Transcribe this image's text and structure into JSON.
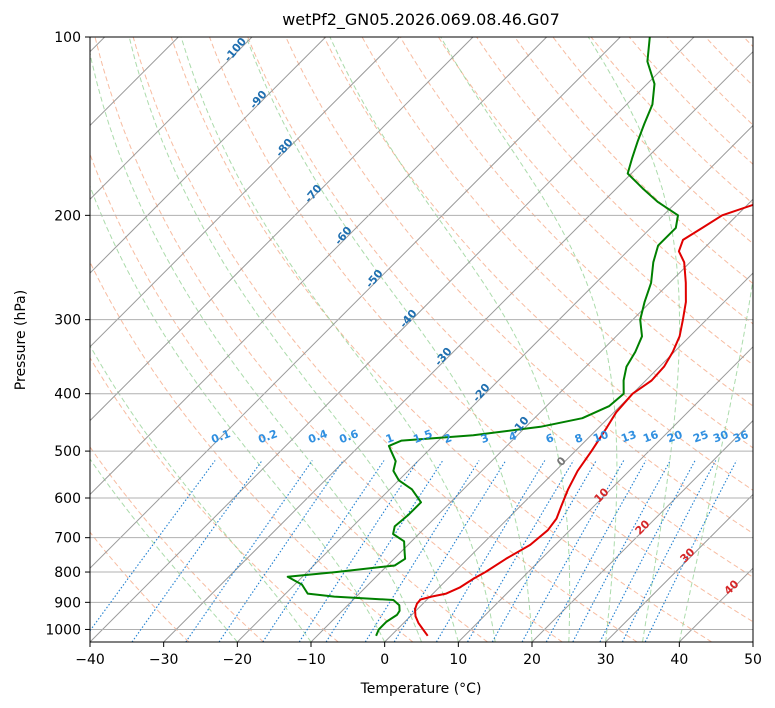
{
  "chart_data": {
    "type": "line",
    "title": "wetPf2_GN05.2026.069.08.46.G07",
    "xlabel": "Temperature (°C)",
    "ylabel": "Pressure (hPa)",
    "xlim": [
      -40,
      50
    ],
    "ylim": [
      1050,
      100
    ],
    "x_ticks": [
      "−40",
      "−30",
      "−20",
      "−10",
      "0",
      "10",
      "20",
      "30",
      "40",
      "50"
    ],
    "y_ticks": [
      "100",
      "200",
      "300",
      "400",
      "500",
      "600",
      "700",
      "800",
      "900",
      "1000"
    ],
    "series": [
      {
        "name": "Temperature",
        "color": "#e00000",
        "points": [
          {
            "p": 1025,
            "t": 5.0
          },
          {
            "p": 1000,
            "t": 3.5
          },
          {
            "p": 975,
            "t": 2.0
          },
          {
            "p": 950,
            "t": 0.7
          },
          {
            "p": 925,
            "t": -0.3
          },
          {
            "p": 905,
            "t": -0.8
          },
          {
            "p": 890,
            "t": -0.9
          },
          {
            "p": 880,
            "t": 0.2
          },
          {
            "p": 870,
            "t": 1.8
          },
          {
            "p": 850,
            "t": 2.8
          },
          {
            "p": 820,
            "t": 3.5
          },
          {
            "p": 800,
            "t": 4.2
          },
          {
            "p": 760,
            "t": 5.2
          },
          {
            "p": 720,
            "t": 6.6
          },
          {
            "p": 680,
            "t": 7.0
          },
          {
            "p": 650,
            "t": 6.6
          },
          {
            "p": 620,
            "t": 5.6
          },
          {
            "p": 580,
            "t": 4.2
          },
          {
            "p": 540,
            "t": 3.0
          },
          {
            "p": 500,
            "t": 2.2
          },
          {
            "p": 460,
            "t": 1.2
          },
          {
            "p": 430,
            "t": 0.3
          },
          {
            "p": 400,
            "t": 0.0
          },
          {
            "p": 380,
            "t": 0.8
          },
          {
            "p": 360,
            "t": 0.6
          },
          {
            "p": 340,
            "t": -0.2
          },
          {
            "p": 320,
            "t": -1.4
          },
          {
            "p": 300,
            "t": -3.2
          },
          {
            "p": 280,
            "t": -5.2
          },
          {
            "p": 260,
            "t": -7.8
          },
          {
            "p": 240,
            "t": -10.8
          },
          {
            "p": 230,
            "t": -13.0
          },
          {
            "p": 220,
            "t": -14.0
          },
          {
            "p": 210,
            "t": -13.0
          },
          {
            "p": 200,
            "t": -12.0
          },
          {
            "p": 190,
            "t": -8.5
          },
          {
            "p": 180,
            "t": -6.0
          },
          {
            "p": 170,
            "t": -5.5
          },
          {
            "p": 160,
            "t": -5.0
          },
          {
            "p": 150,
            "t": -4.0
          },
          {
            "p": 140,
            "t": -3.5
          },
          {
            "p": 130,
            "t": -3.2
          },
          {
            "p": 120,
            "t": -3.5
          },
          {
            "p": 110,
            "t": -4.5
          },
          {
            "p": 100,
            "t": -6.0
          }
        ]
      },
      {
        "name": "Dewpoint",
        "color": "#008000",
        "points": [
          {
            "p": 1025,
            "t": -2.0
          },
          {
            "p": 1000,
            "t": -2.5
          },
          {
            "p": 970,
            "t": -2.5
          },
          {
            "p": 945,
            "t": -2.0
          },
          {
            "p": 930,
            "t": -2.2
          },
          {
            "p": 910,
            "t": -3.0
          },
          {
            "p": 892,
            "t": -4.5
          },
          {
            "p": 880,
            "t": -13.0
          },
          {
            "p": 870,
            "t": -17.0
          },
          {
            "p": 840,
            "t": -19.0
          },
          {
            "p": 815,
            "t": -22.0
          },
          {
            "p": 800,
            "t": -16.0
          },
          {
            "p": 780,
            "t": -9.0
          },
          {
            "p": 760,
            "t": -8.5
          },
          {
            "p": 740,
            "t": -9.5
          },
          {
            "p": 710,
            "t": -11.0
          },
          {
            "p": 690,
            "t": -13.5
          },
          {
            "p": 670,
            "t": -14.3
          },
          {
            "p": 640,
            "t": -14.0
          },
          {
            "p": 610,
            "t": -14.0
          },
          {
            "p": 580,
            "t": -17.0
          },
          {
            "p": 560,
            "t": -20.0
          },
          {
            "p": 540,
            "t": -22.0
          },
          {
            "p": 520,
            "t": -23.0
          },
          {
            "p": 500,
            "t": -25.0
          },
          {
            "p": 490,
            "t": -26.0
          },
          {
            "p": 480,
            "t": -25.0
          },
          {
            "p": 470,
            "t": -16.0
          },
          {
            "p": 455,
            "t": -8.0
          },
          {
            "p": 440,
            "t": -3.5
          },
          {
            "p": 420,
            "t": -1.5
          },
          {
            "p": 400,
            "t": -1.2
          },
          {
            "p": 380,
            "t": -3.0
          },
          {
            "p": 360,
            "t": -4.5
          },
          {
            "p": 340,
            "t": -5.3
          },
          {
            "p": 320,
            "t": -6.5
          },
          {
            "p": 300,
            "t": -9.0
          },
          {
            "p": 280,
            "t": -10.8
          },
          {
            "p": 260,
            "t": -12.5
          },
          {
            "p": 240,
            "t": -15.0
          },
          {
            "p": 225,
            "t": -16.6
          },
          {
            "p": 210,
            "t": -16.6
          },
          {
            "p": 200,
            "t": -18.0
          },
          {
            "p": 190,
            "t": -22.5
          },
          {
            "p": 180,
            "t": -26.5
          },
          {
            "p": 170,
            "t": -30.5
          },
          {
            "p": 160,
            "t": -32.0
          },
          {
            "p": 150,
            "t": -33.5
          },
          {
            "p": 140,
            "t": -35.0
          },
          {
            "p": 130,
            "t": -36.5
          },
          {
            "p": 120,
            "t": -39.0
          },
          {
            "p": 110,
            "t": -43.0
          },
          {
            "p": 100,
            "t": -46.0
          }
        ]
      }
    ],
    "dry_adiabat_labels": [
      "-100",
      "-90",
      "-80",
      "-70",
      "-60",
      "-50",
      "-40",
      "-30",
      "-20",
      "-10"
    ],
    "mixing_ratio_labels": [
      "0.1",
      "0.2",
      "0.4",
      "0.6",
      "1",
      "1.5",
      "2",
      "3",
      "4",
      "6",
      "8",
      "10",
      "13",
      "16",
      "20",
      "25",
      "30",
      "36"
    ],
    "moist_adiabat_labels": [
      "0",
      "10",
      "20",
      "30",
      "40"
    ]
  },
  "colors": {
    "temperature": "#e00000",
    "dewpoint": "#008000",
    "dry_adiabat": "#f4a582",
    "moist_adiabat": "#8fcf8f",
    "mixing_ratio": "#1f7fd0",
    "isotherm": "#9a9a9a",
    "isobar": "#b0b0b0",
    "dry_label": "#1f6fb0",
    "mix_label": "#2f8fe0",
    "moist_label": "#d62728"
  }
}
